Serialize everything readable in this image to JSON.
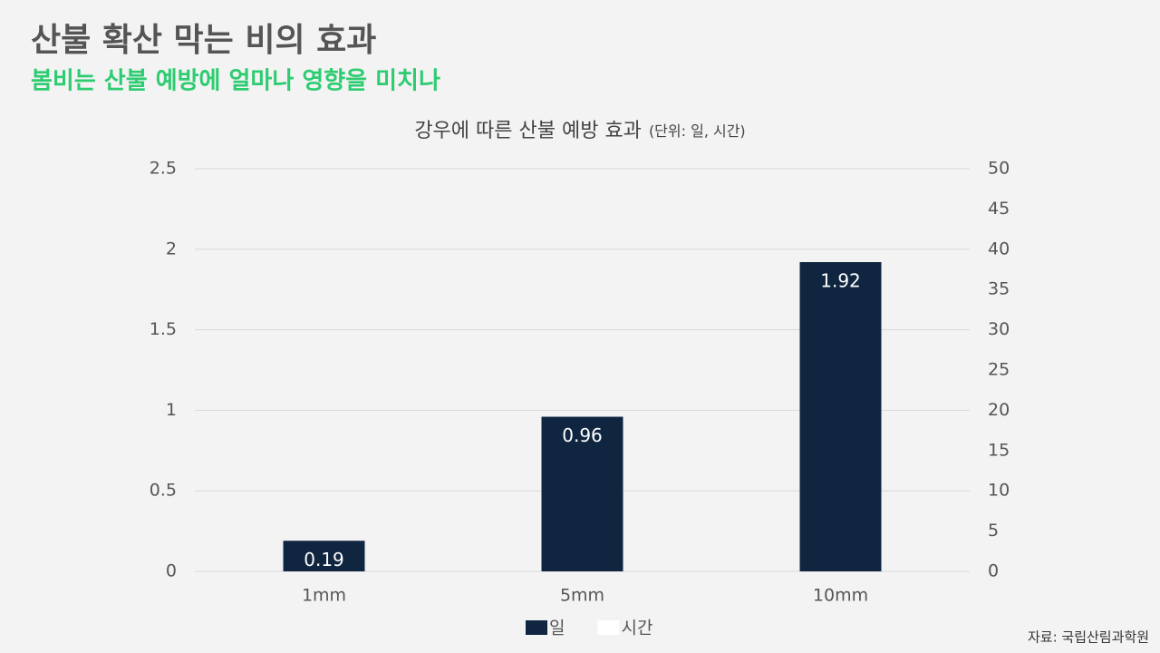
{
  "chart_data": {
    "type": "bar",
    "title": "산불 확산 막는 비의 효과",
    "subtitle": "봄비는 산불 예방에 얼마나 영향을 미치나",
    "chart_title": "강우에 따른 산불 예방 효과",
    "unit_note": "(단위: 일, 시간)",
    "source": "자료: 국립산림과학원",
    "categories": [
      "1mm",
      "5mm",
      "10mm"
    ],
    "series": [
      {
        "name": "일",
        "color": "#0f2540",
        "values": [
          0.19,
          0.96,
          1.92
        ]
      },
      {
        "name": "시간",
        "color": "#ffffff",
        "axis": "y2",
        "values": [
          null,
          null,
          null
        ]
      }
    ],
    "ylim": [
      0,
      2.5
    ],
    "yticks": [
      0,
      0.5,
      1,
      1.5,
      2,
      2.5
    ],
    "y2lim": [
      0,
      50
    ],
    "y2ticks": [
      0,
      5,
      10,
      15,
      20,
      25,
      30,
      35,
      40,
      45,
      50
    ],
    "grid": true,
    "legend": "bottom"
  }
}
